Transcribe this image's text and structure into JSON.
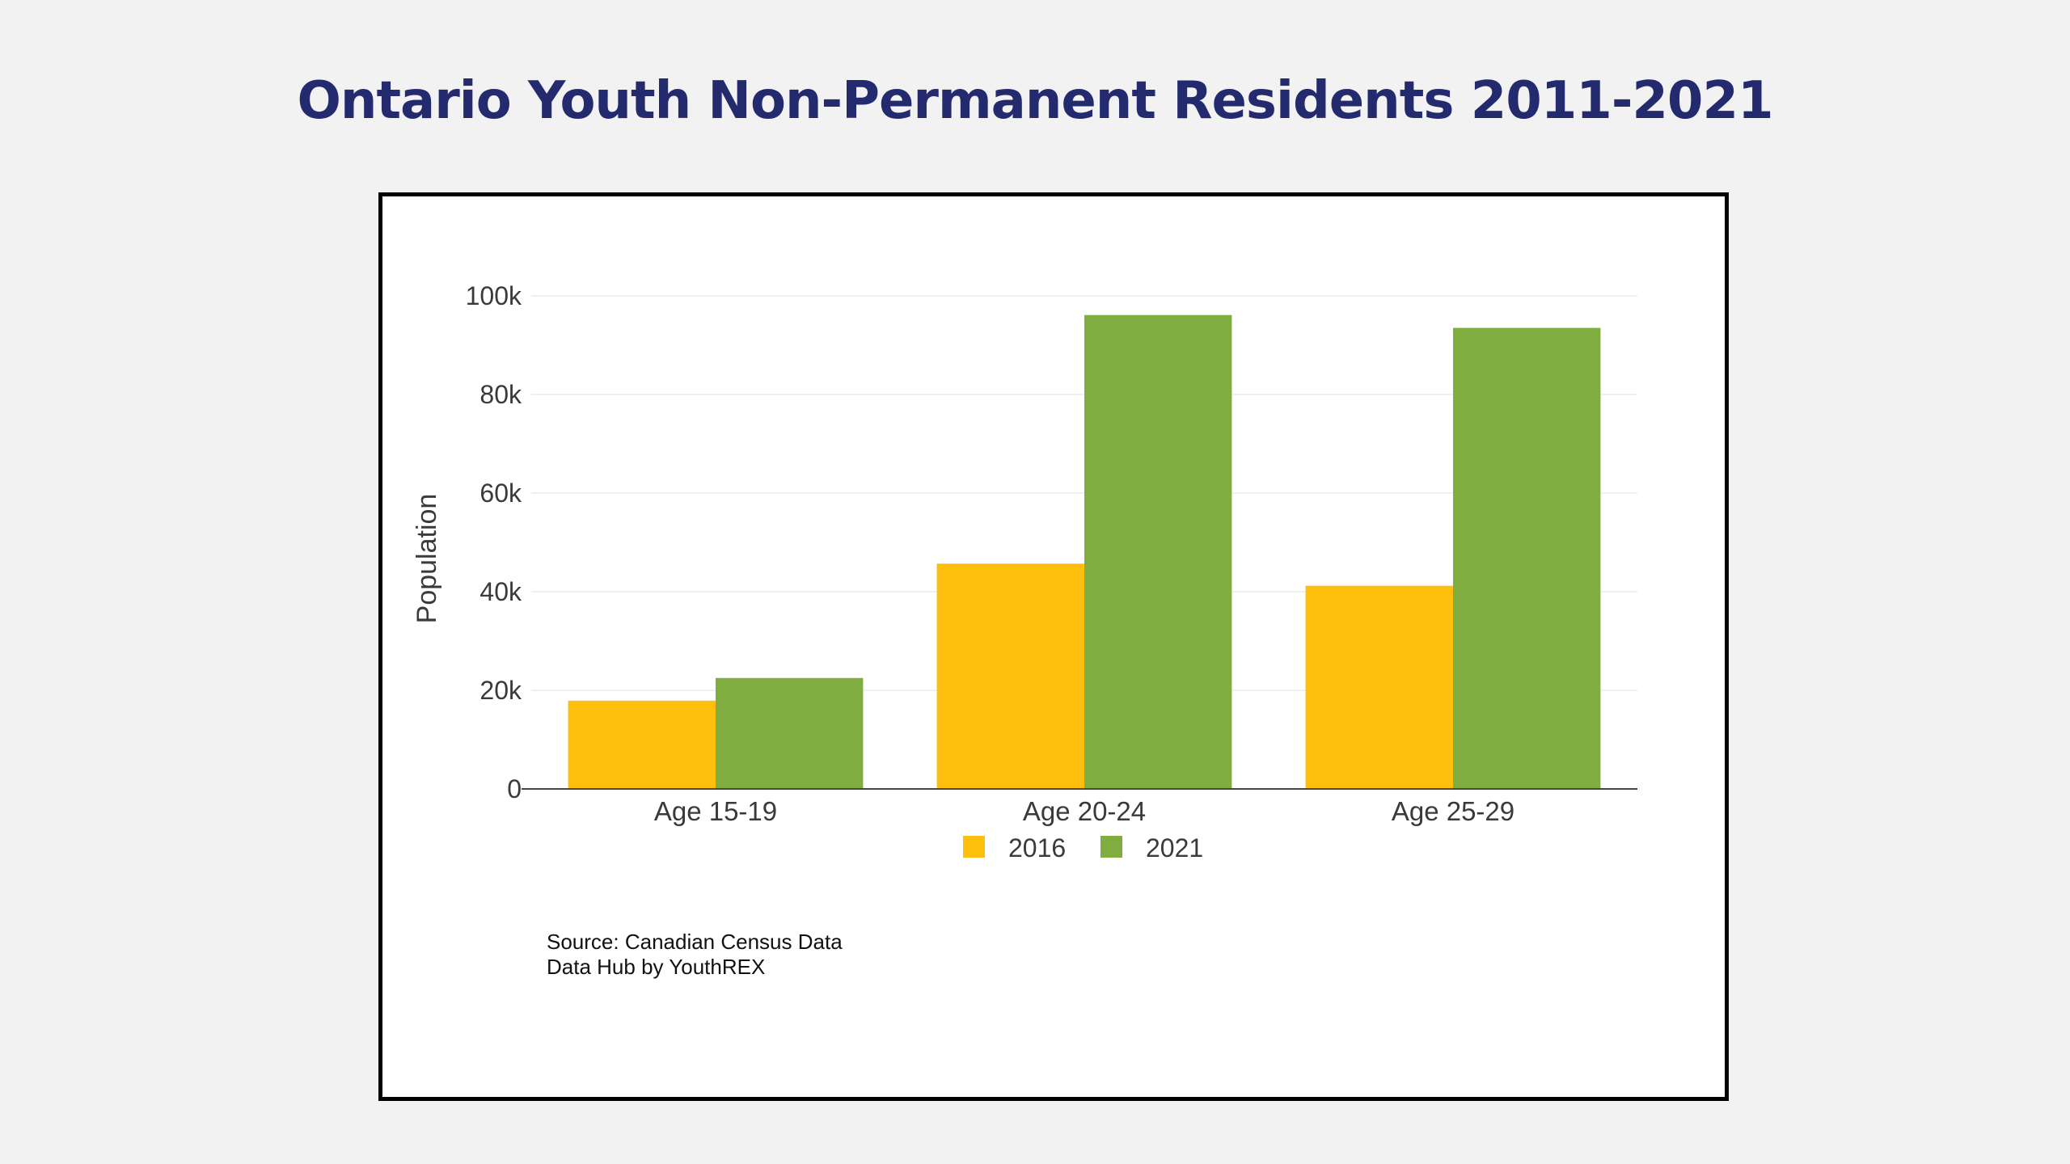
{
  "page": {
    "title": "Ontario Youth Non-Permanent Residents 2011-2021"
  },
  "source": {
    "line1": "Source: Canadian Census Data",
    "line2": "Data Hub by YouthREX"
  },
  "chart_data": {
    "type": "bar",
    "title": "",
    "xlabel": "",
    "ylabel": "Population",
    "categories": [
      "Age 15-19",
      "Age 20-24",
      "Age 25-29"
    ],
    "series": [
      {
        "name": "2016",
        "color": "#fdbf0c",
        "values": [
          17900,
          45700,
          41200
        ]
      },
      {
        "name": "2021",
        "color": "#80ad3f",
        "values": [
          22500,
          96100,
          93500
        ]
      }
    ],
    "ylim": [
      0,
      100000
    ],
    "yticks": [
      0,
      20000,
      40000,
      60000,
      80000,
      100000
    ],
    "ytick_labels": [
      "0",
      "20k",
      "40k",
      "60k",
      "80k",
      "100k"
    ],
    "grid": true,
    "legend_position": "bottom-center"
  }
}
